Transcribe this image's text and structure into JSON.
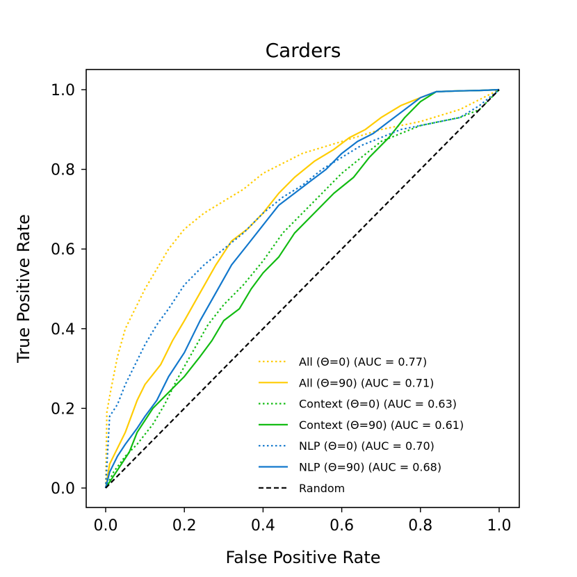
{
  "chart_data": {
    "type": "line",
    "title": "Carders",
    "xlabel": "False Positive Rate",
    "ylabel": "True Positive Rate",
    "xlim": [
      -0.05,
      1.05
    ],
    "ylim": [
      -0.05,
      1.05
    ],
    "xticks": [
      "0.0",
      "0.2",
      "0.4",
      "0.6",
      "0.8",
      "1.0"
    ],
    "yticks": [
      "0.0",
      "0.2",
      "0.4",
      "0.6",
      "0.8",
      "1.0"
    ],
    "grid": false,
    "legend_position": "lower-right",
    "series": [
      {
        "name": "All (Θ=0) (AUC = 0.77)",
        "color": "#ffcc00",
        "style": "dotted",
        "x": [
          0,
          0.003,
          0.01,
          0.02,
          0.03,
          0.05,
          0.07,
          0.1,
          0.13,
          0.16,
          0.2,
          0.25,
          0.3,
          0.35,
          0.4,
          0.5,
          0.6,
          0.7,
          0.8,
          0.9,
          1.0
        ],
        "y": [
          0,
          0.19,
          0.23,
          0.28,
          0.33,
          0.4,
          0.44,
          0.5,
          0.55,
          0.6,
          0.65,
          0.69,
          0.72,
          0.75,
          0.79,
          0.84,
          0.87,
          0.9,
          0.92,
          0.95,
          1.0
        ]
      },
      {
        "name": "All (Θ=90) (AUC = 0.71)",
        "color": "#ffcc00",
        "style": "solid",
        "x": [
          0,
          0.01,
          0.03,
          0.05,
          0.08,
          0.1,
          0.14,
          0.17,
          0.2,
          0.24,
          0.28,
          0.32,
          0.36,
          0.4,
          0.44,
          0.48,
          0.53,
          0.58,
          0.62,
          0.66,
          0.7,
          0.75,
          0.8,
          0.84,
          0.9,
          0.95,
          1.0
        ],
        "y": [
          0,
          0.06,
          0.1,
          0.14,
          0.22,
          0.26,
          0.31,
          0.37,
          0.42,
          0.49,
          0.56,
          0.62,
          0.65,
          0.69,
          0.74,
          0.78,
          0.82,
          0.85,
          0.88,
          0.9,
          0.93,
          0.96,
          0.98,
          0.995,
          0.997,
          0.998,
          1.0
        ]
      },
      {
        "name": "Context (Θ=0) (AUC = 0.63)",
        "color": "#11bb11",
        "style": "dotted",
        "x": [
          0,
          0.02,
          0.05,
          0.08,
          0.12,
          0.15,
          0.18,
          0.22,
          0.26,
          0.3,
          0.35,
          0.4,
          0.45,
          0.5,
          0.55,
          0.6,
          0.65,
          0.7,
          0.75,
          0.8,
          0.85,
          0.9,
          0.95,
          1.0
        ],
        "y": [
          0,
          0.04,
          0.08,
          0.11,
          0.16,
          0.21,
          0.27,
          0.34,
          0.41,
          0.46,
          0.51,
          0.57,
          0.64,
          0.69,
          0.74,
          0.79,
          0.83,
          0.87,
          0.89,
          0.91,
          0.92,
          0.93,
          0.95,
          1.0
        ]
      },
      {
        "name": "Context (Θ=90) (AUC = 0.61)",
        "color": "#11bb11",
        "style": "solid",
        "x": [
          0,
          0.02,
          0.04,
          0.06,
          0.08,
          0.1,
          0.12,
          0.15,
          0.18,
          0.2,
          0.24,
          0.27,
          0.3,
          0.34,
          0.37,
          0.4,
          0.44,
          0.48,
          0.53,
          0.58,
          0.63,
          0.67,
          0.72,
          0.76,
          0.8,
          0.84,
          0.9,
          0.95,
          1.0
        ],
        "y": [
          0,
          0.03,
          0.06,
          0.09,
          0.14,
          0.17,
          0.2,
          0.23,
          0.26,
          0.28,
          0.33,
          0.37,
          0.42,
          0.45,
          0.5,
          0.54,
          0.58,
          0.64,
          0.69,
          0.74,
          0.78,
          0.83,
          0.88,
          0.93,
          0.97,
          0.995,
          0.997,
          0.998,
          1.0
        ]
      },
      {
        "name": "NLP (Θ=0) (AUC = 0.70)",
        "color": "#1177cc",
        "style": "dotted",
        "x": [
          0,
          0.005,
          0.01,
          0.03,
          0.05,
          0.07,
          0.1,
          0.13,
          0.16,
          0.2,
          0.25,
          0.3,
          0.35,
          0.4,
          0.45,
          0.5,
          0.55,
          0.6,
          0.65,
          0.7,
          0.75,
          0.8,
          0.85,
          0.9,
          0.95,
          1.0
        ],
        "y": [
          0,
          0.09,
          0.18,
          0.21,
          0.26,
          0.3,
          0.36,
          0.41,
          0.45,
          0.51,
          0.56,
          0.6,
          0.64,
          0.69,
          0.73,
          0.76,
          0.8,
          0.83,
          0.86,
          0.88,
          0.9,
          0.91,
          0.92,
          0.93,
          0.96,
          1.0
        ]
      },
      {
        "name": "NLP (Θ=90) (AUC = 0.68)",
        "color": "#1177cc",
        "style": "solid",
        "x": [
          0,
          0.01,
          0.03,
          0.05,
          0.08,
          0.1,
          0.13,
          0.16,
          0.2,
          0.24,
          0.28,
          0.32,
          0.36,
          0.4,
          0.44,
          0.48,
          0.52,
          0.56,
          0.6,
          0.64,
          0.68,
          0.72,
          0.76,
          0.8,
          0.84,
          0.9,
          0.95,
          1.0
        ],
        "y": [
          0,
          0.04,
          0.08,
          0.11,
          0.15,
          0.18,
          0.22,
          0.28,
          0.34,
          0.42,
          0.49,
          0.56,
          0.61,
          0.66,
          0.71,
          0.74,
          0.77,
          0.8,
          0.84,
          0.87,
          0.89,
          0.92,
          0.95,
          0.98,
          0.995,
          0.997,
          0.998,
          1.0
        ]
      },
      {
        "name": "Random",
        "color": "#000000",
        "style": "dashed",
        "x": [
          0,
          1
        ],
        "y": [
          0,
          1
        ]
      }
    ]
  }
}
